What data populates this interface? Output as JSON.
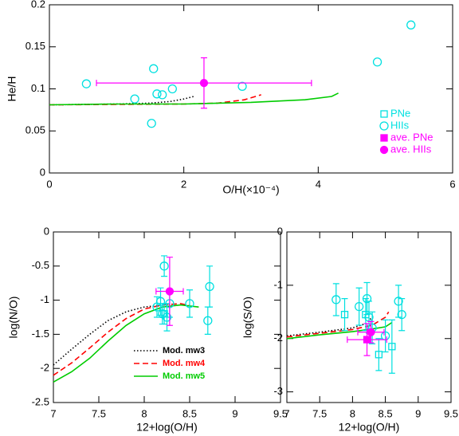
{
  "chart_data": [
    {
      "type": "scatter",
      "xlabel": "O/H(×10⁻⁴)",
      "ylabel": "He/H",
      "xlim": [
        0,
        6
      ],
      "ylim": [
        0,
        0.2
      ],
      "xticks": [
        0,
        2,
        4,
        6
      ],
      "yticks": [
        0,
        0.05,
        0.1,
        0.15,
        0.2
      ],
      "legend_loc": "right",
      "series": [
        {
          "color": "#000000",
          "marker": "none",
          "line": "dotted",
          "x": [
            0,
            0.5,
            1,
            1.5,
            1.8,
            2.0,
            2.15
          ],
          "y": [
            0.081,
            0.0815,
            0.082,
            0.083,
            0.085,
            0.088,
            0.091
          ]
        },
        {
          "color": "#ff0000",
          "marker": "none",
          "line": "dashed",
          "x": [
            0,
            1,
            2,
            2.5,
            2.9,
            3.15
          ],
          "y": [
            0.081,
            0.0815,
            0.082,
            0.083,
            0.087,
            0.093
          ]
        },
        {
          "color": "#00cc00",
          "marker": "none",
          "line": "solid",
          "x": [
            0,
            1,
            2,
            3,
            3.8,
            4.2,
            4.3
          ],
          "y": [
            0.081,
            0.082,
            0.082,
            0.084,
            0.087,
            0.091,
            0.095
          ]
        },
        {
          "name": "PNe",
          "color": "#00e0e0",
          "marker": "square",
          "line": "none",
          "x": [],
          "y": []
        },
        {
          "name": "HIIs",
          "color": "#00e0e0",
          "marker": "circle",
          "line": "none",
          "x": [
            0.55,
            1.27,
            1.55,
            1.6,
            1.68,
            1.52,
            1.83,
            2.87,
            4.88,
            5.38
          ],
          "y": [
            0.106,
            0.088,
            0.124,
            0.094,
            0.093,
            0.059,
            0.1,
            0.103,
            0.132,
            0.176
          ]
        },
        {
          "name": "ave. PNe",
          "color": "#ff00ff",
          "marker": "filled-square",
          "line": "none",
          "x": [],
          "y": []
        },
        {
          "name": "ave. HIIs",
          "color": "#ff00ff",
          "marker": "filled-circle",
          "line": "none",
          "x": [
            2.3
          ],
          "y": [
            0.107
          ],
          "xerr": [
            1.6
          ],
          "yerr": [
            0.03
          ]
        }
      ]
    },
    {
      "type": "scatter",
      "xlabel": "12+log(O/H)",
      "ylabel": "log(N/O)",
      "xlim": [
        7,
        9.5
      ],
      "ylim": [
        -2.5,
        0
      ],
      "xticks": [
        7,
        7.5,
        8,
        8.5,
        9,
        9.5
      ],
      "yticks": [
        0,
        -0.5,
        -1,
        -1.5,
        -2,
        -2.5
      ],
      "legend_loc": "lower right",
      "series": [
        {
          "name": "Mod. mw3",
          "color": "#000000",
          "marker": "none",
          "line": "dotted",
          "x": [
            7,
            7.2,
            7.4,
            7.6,
            7.8,
            8.0,
            8.2,
            8.3
          ],
          "y": [
            -1.95,
            -1.72,
            -1.5,
            -1.3,
            -1.17,
            -1.1,
            -1.07,
            -1.06
          ]
        },
        {
          "name": "Mod. mw4",
          "color": "#ff0000",
          "marker": "none",
          "line": "dashed",
          "x": [
            7,
            7.2,
            7.4,
            7.6,
            7.8,
            8.0,
            8.2,
            8.4,
            8.5
          ],
          "y": [
            -2.1,
            -1.92,
            -1.7,
            -1.47,
            -1.27,
            -1.13,
            -1.07,
            -1.05,
            -1.08
          ]
        },
        {
          "name": "Mod. mw5",
          "color": "#00cc00",
          "marker": "none",
          "line": "solid",
          "x": [
            7,
            7.2,
            7.4,
            7.6,
            7.8,
            8.0,
            8.2,
            8.4,
            8.6
          ],
          "y": [
            -2.2,
            -2.05,
            -1.85,
            -1.6,
            -1.37,
            -1.2,
            -1.1,
            -1.07,
            -1.1
          ]
        },
        {
          "color": "#00e0e0",
          "marker": "circle",
          "line": "none",
          "x": [
            8.18,
            8.2,
            8.22,
            8.25,
            8.28,
            8.14,
            8.5,
            8.72,
            8.7
          ],
          "y": [
            -1.02,
            -1.2,
            -0.5,
            -1.25,
            -1.05,
            -1.1,
            -1.05,
            -0.8,
            -1.3
          ],
          "yerr": [
            0.2,
            0.15,
            0.15,
            0.2,
            0.2,
            0.15,
            0.2,
            0.3,
            0.2
          ]
        },
        {
          "color": "#00e0e0",
          "marker": "square",
          "line": "none",
          "x": [
            8.22
          ],
          "y": [
            -1.2
          ],
          "yerr": [
            0.15
          ]
        },
        {
          "color": "#ff00ff",
          "marker": "filled-circle",
          "line": "none",
          "x": [
            8.28
          ],
          "y": [
            -0.87
          ],
          "xerr": [
            0.15
          ],
          "yerr": [
            0.5
          ]
        }
      ]
    },
    {
      "type": "scatter",
      "xlabel": "12+log(O/H)",
      "ylabel": "log(S/O)",
      "xlim": [
        7,
        9.5
      ],
      "ylim": [
        -3.2,
        0
      ],
      "xticks": [
        7,
        7.5,
        8,
        8.5,
        9,
        9.5
      ],
      "yticks": [
        0,
        -1,
        -2,
        -3
      ],
      "series": [
        {
          "color": "#000000",
          "marker": "none",
          "line": "dotted",
          "x": [
            7,
            7.5,
            8,
            8.2,
            8.3
          ],
          "y": [
            -1.95,
            -1.88,
            -1.8,
            -1.72,
            -1.6
          ]
        },
        {
          "color": "#ff0000",
          "marker": "none",
          "line": "dashed",
          "x": [
            7,
            7.5,
            8,
            8.3,
            8.5,
            8.55
          ],
          "y": [
            -1.97,
            -1.9,
            -1.83,
            -1.75,
            -1.6,
            -1.5
          ]
        },
        {
          "color": "#00cc00",
          "marker": "none",
          "line": "solid",
          "x": [
            7,
            7.5,
            8,
            8.3,
            8.5,
            8.6
          ],
          "y": [
            -2.0,
            -1.93,
            -1.87,
            -1.82,
            -1.78,
            -1.7
          ]
        },
        {
          "color": "#00e0e0",
          "marker": "circle",
          "line": "none",
          "x": [
            7.75,
            8.1,
            8.22,
            8.3,
            8.5,
            8.7,
            8.75,
            8.25
          ],
          "y": [
            -1.27,
            -1.4,
            -1.25,
            -1.8,
            -1.95,
            -1.3,
            -1.55,
            -1.6
          ],
          "yerr": [
            0.3,
            0.35,
            0.3,
            0.3,
            0.3,
            0.3,
            0.3,
            0.3
          ]
        },
        {
          "color": "#00e0e0",
          "marker": "square",
          "line": "none",
          "x": [
            7.88,
            8.2,
            8.4,
            8.6
          ],
          "y": [
            -1.55,
            -1.55,
            -2.3,
            -2.15
          ],
          "yerr": [
            0.3,
            0.3,
            0.3,
            0.5
          ]
        },
        {
          "color": "#ff00ff",
          "marker": "filled-square",
          "line": "none",
          "x": [
            8.22
          ],
          "y": [
            -2.02
          ],
          "xerr": [
            0.3
          ],
          "yerr": [
            0.3
          ]
        },
        {
          "color": "#ff00ff",
          "marker": "filled-circle",
          "line": "none",
          "x": [
            8.28
          ],
          "y": [
            -1.88
          ],
          "xerr": [
            0.2
          ],
          "yerr": [
            0.2
          ]
        }
      ]
    }
  ]
}
